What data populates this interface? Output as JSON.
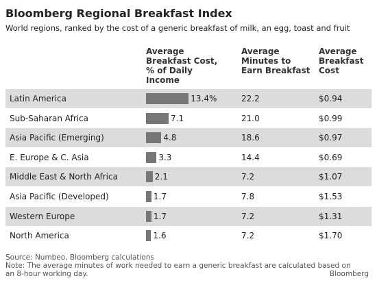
{
  "title": "Bloomberg Regional Breakfast Index",
  "subtitle": "World regions, ranked by the cost of a generic breakfast of milk, an egg, toast and fruit",
  "table": {
    "columns": [
      "Average Breakfast Cost, % of Daily Income",
      "Average Minutes to Earn Breakfast",
      "Average Breakfast Cost"
    ],
    "regions": [
      "Latin America",
      "Sub-Saharan Africa",
      "Asia Pacific (Emerging)",
      "E. Europe & C. Asia",
      "Middle East & North Africa",
      "Asia Pacific (Developed)",
      "Western Europe",
      "North America"
    ],
    "cost_pct": [
      13.4,
      7.1,
      4.8,
      3.3,
      2.1,
      1.7,
      1.7,
      1.6
    ],
    "cost_pct_labels": [
      "13.4%",
      "7.1",
      "4.8",
      "3.3",
      "2.1",
      "1.7",
      "1.7",
      "1.6"
    ],
    "minutes": [
      "22.2",
      "21.0",
      "18.6",
      "14.4",
      "7.2",
      "7.8",
      "7.2",
      "7.2"
    ],
    "cost": [
      "$0.94",
      "$0.99",
      "$0.97",
      "$0.69",
      "$1.07",
      "$1.53",
      "$1.31",
      "$1.70"
    ],
    "bar_color": "#777777",
    "stripe_color": "#dcdcdc"
  },
  "source": "Source: Numbeo, Bloomberg calculations",
  "note": "Note: The average minutes of work needed to earn a generic breakfast are calculated based on an 8-hour working day.",
  "credit": "Bloomberg"
}
